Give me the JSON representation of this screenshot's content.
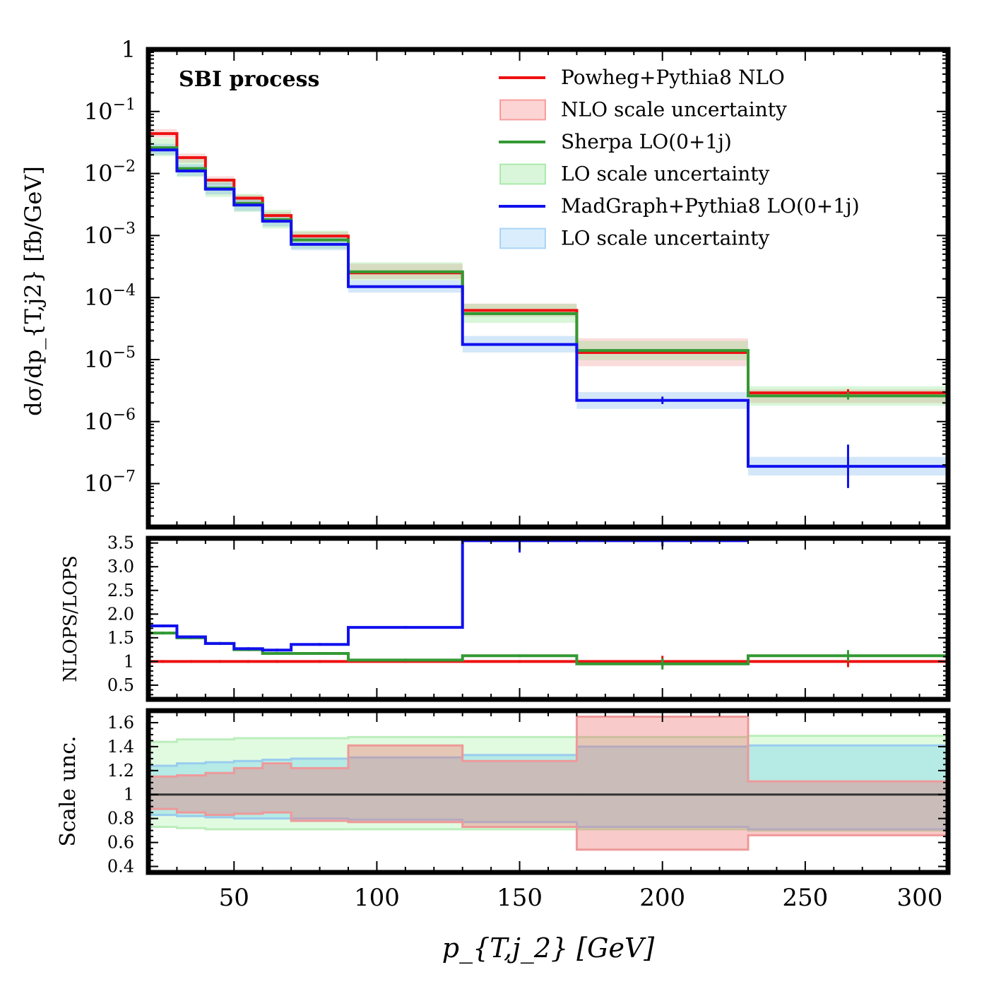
{
  "chart_data": {
    "type": "line",
    "xlabel": "p_{T,j_2} [GeV]",
    "xlim": [
      20,
      300
    ],
    "x_ticks": [
      "50",
      "100",
      "150",
      "200",
      "250",
      "300"
    ],
    "bin_edges": [
      20,
      30,
      40,
      50,
      60,
      70,
      90,
      130,
      170,
      230,
      300
    ],
    "panels": {
      "main": {
        "title": "SBI process",
        "ylabel": "dσ/dp_{T,j2} [fb/GeV]",
        "yscale": "log",
        "ylim_exp": [
          -7.7,
          0
        ],
        "y_ticks": [
          {
            "base": "1",
            "exp": ""
          },
          {
            "base": "10",
            "exp": "−1"
          },
          {
            "base": "10",
            "exp": "−2"
          },
          {
            "base": "10",
            "exp": "−3"
          },
          {
            "base": "10",
            "exp": "−4"
          },
          {
            "base": "10",
            "exp": "−5"
          },
          {
            "base": "10",
            "exp": "−6"
          },
          {
            "base": "10",
            "exp": "−7"
          }
        ],
        "series": [
          {
            "name": "Powheg+Pythia8 NLO",
            "color": "#ee1111",
            "values": [
              0.044,
              0.018,
              0.0078,
              0.004,
              0.0021,
              0.00098,
              0.00025,
              6.2e-05,
              1.3e-05,
              2.9e-06
            ],
            "band_low": [
              0.038,
              0.015,
              0.0066,
              0.0034,
              0.0018,
              0.00082,
              0.0002,
              4.9e-05,
              7.8e-06,
              2e-06
            ],
            "band_high": [
              0.052,
              0.021,
              0.009,
              0.0045,
              0.0024,
              0.00115,
              0.00035,
              8e-05,
              2.2e-05,
              3.3e-06
            ]
          },
          {
            "name": "Sherpa LO(0+1j)",
            "color": "#339933",
            "values": [
              0.026,
              0.012,
              0.0058,
              0.0033,
              0.0018,
              0.00085,
              0.00026,
              5.5e-05,
              1.4e-05,
              2.6e-06
            ],
            "band_low": [
              0.019,
              0.0088,
              0.0042,
              0.0024,
              0.0013,
              0.00061,
              0.00019,
              3.9e-05,
              9.8e-06,
              1.8e-06
            ],
            "band_high": [
              0.037,
              0.017,
              0.0083,
              0.0047,
              0.0026,
              0.0012,
              0.00037,
              7.9e-05,
              2e-05,
              3.7e-06
            ]
          },
          {
            "name": "MadGraph+Pythia8 LO(0+1j)",
            "color": "#1111ee",
            "values": [
              0.024,
              0.011,
              0.0056,
              0.0031,
              0.0017,
              0.00072,
              0.00015,
              1.75e-05,
              2.2e-06,
              1.9e-07
            ],
            "band_low": [
              0.02,
              0.0091,
              0.0046,
              0.0025,
              0.0014,
              0.00058,
              0.00012,
              1.3e-05,
              1.6e-06,
              1.35e-07
            ],
            "band_high": [
              0.03,
              0.014,
              0.0071,
              0.004,
              0.0022,
              0.00094,
              0.00019,
              2.4e-05,
              3e-06,
              2.7e-07
            ]
          }
        ],
        "legend": [
          {
            "label": "Powheg+Pythia8 NLO",
            "kind": "line",
            "color": "#ee1111"
          },
          {
            "label": "NLO scale uncertainty",
            "kind": "band",
            "color": "#ee1111"
          },
          {
            "label": "Sherpa LO(0+1j)",
            "kind": "line",
            "color": "#339933"
          },
          {
            "label": "LO scale uncertainty",
            "kind": "band",
            "color": "#33cc33"
          },
          {
            "label": "MadGraph+Pythia8 LO(0+1j)",
            "kind": "line",
            "color": "#1111ee"
          },
          {
            "label": "LO scale uncertainty",
            "kind": "band",
            "color": "#3399ee"
          }
        ],
        "legend_position": "top-right"
      },
      "ratio": {
        "ylabel": "NLOPS/LOPS",
        "ylim": [
          0.2,
          3.6
        ],
        "y_ticks": [
          "0.5",
          "1",
          "1.5",
          "2.0",
          "2.5",
          "3.0",
          "3.5"
        ],
        "series": [
          {
            "name": "Powheg+Pythia8 NLO",
            "color": "#ee1111",
            "values": [
              1,
              1,
              1,
              1,
              1,
              1,
              1,
              1,
              1,
              1
            ]
          },
          {
            "name": "Sherpa LO(0+1j)",
            "color": "#339933",
            "values": [
              1.6,
              1.5,
              1.38,
              1.25,
              1.17,
              1.17,
              1.03,
              1.12,
              0.95,
              1.12
            ]
          },
          {
            "name": "MadGraph+Pythia8 LO(0+1j)",
            "color": "#1111ee",
            "values": [
              1.75,
              1.52,
              1.38,
              1.27,
              1.24,
              1.36,
              1.72,
              3.55,
              3.55,
              null
            ]
          }
        ]
      },
      "scale": {
        "ylabel": "Scale unc.",
        "ylim": [
          0.35,
          1.7
        ],
        "y_ticks": [
          "0.4",
          "0.6",
          "0.8",
          "1",
          "1.2",
          "1.4",
          "1.6"
        ],
        "bands": [
          {
            "name": "LO scale uncertainty (Sherpa)",
            "color": "#33cc33",
            "low": [
              0.73,
              0.72,
              0.71,
              0.71,
              0.71,
              0.71,
              0.71,
              0.71,
              0.71,
              0.7
            ],
            "high": [
              1.44,
              1.46,
              1.46,
              1.47,
              1.47,
              1.47,
              1.48,
              1.48,
              1.48,
              1.49
            ]
          },
          {
            "name": "LO scale uncertainty (MadGraph)",
            "color": "#3399ee",
            "low": [
              0.83,
              0.82,
              0.81,
              0.8,
              0.8,
              0.8,
              0.79,
              0.77,
              0.73,
              0.71
            ],
            "high": [
              1.24,
              1.26,
              1.27,
              1.28,
              1.29,
              1.3,
              1.31,
              1.33,
              1.4,
              1.41
            ]
          },
          {
            "name": "NLO scale uncertainty",
            "color": "#ee1111",
            "low": [
              0.88,
              0.85,
              0.83,
              0.84,
              0.85,
              0.78,
              0.77,
              0.73,
              0.54,
              0.66
            ],
            "high": [
              1.15,
              1.16,
              1.18,
              1.22,
              1.26,
              1.22,
              1.41,
              1.28,
              1.65,
              1.11
            ]
          }
        ],
        "reference_line": 1
      }
    }
  }
}
